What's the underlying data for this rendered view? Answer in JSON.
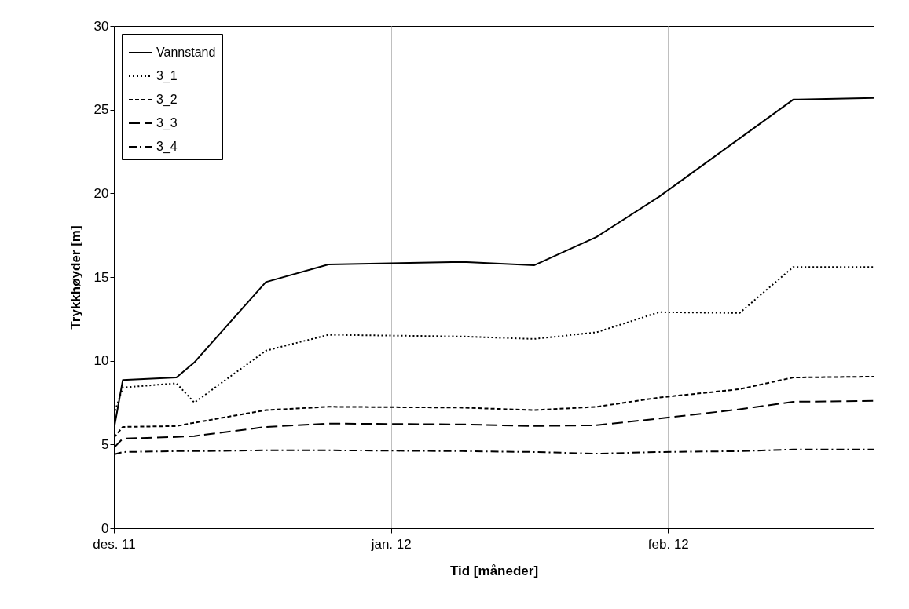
{
  "chart_data": {
    "type": "line",
    "xlabel": "Tid [måneder]",
    "ylabel": "Trykkhøyder [m]",
    "xlim": [
      "2011-12-01",
      "2012-02-24"
    ],
    "xticks": [
      {
        "value": "2011-12-01",
        "label": "des. 11"
      },
      {
        "value": "2012-01-01",
        "label": "jan. 12"
      },
      {
        "value": "2012-02-01",
        "label": "feb. 12"
      }
    ],
    "ylim": [
      0,
      30
    ],
    "yticks": [
      0,
      5,
      10,
      15,
      20,
      25,
      30
    ],
    "grid": "x",
    "legend": "top left",
    "series": [
      {
        "name": "Vannstand",
        "color": "#000000",
        "line_style": "solid",
        "x": [
          "2011-12-01",
          "2011-12-02",
          "2011-12-08",
          "2011-12-10",
          "2011-12-18",
          "2011-12-25",
          "2012-01-09",
          "2012-01-17",
          "2012-01-24",
          "2012-01-31",
          "2012-02-15",
          "2012-02-24"
        ],
        "values": [
          5.9,
          8.85,
          9.0,
          9.9,
          14.7,
          15.75,
          15.9,
          15.7,
          17.4,
          19.8,
          25.6,
          25.7
        ]
      },
      {
        "name": "3_1",
        "color": "#000000",
        "line_style": "dotted",
        "x": [
          "2011-12-01",
          "2011-12-02",
          "2011-12-08",
          "2011-12-10",
          "2011-12-18",
          "2011-12-25",
          "2012-01-09",
          "2012-01-17",
          "2012-01-24",
          "2012-01-31",
          "2012-02-09",
          "2012-02-15",
          "2012-02-24"
        ],
        "values": [
          6.8,
          8.4,
          8.65,
          7.5,
          10.6,
          11.55,
          11.45,
          11.3,
          11.7,
          12.9,
          12.85,
          15.6,
          15.6
        ]
      },
      {
        "name": "3_2",
        "color": "#000000",
        "line_style": "dashed",
        "x": [
          "2011-12-01",
          "2011-12-02",
          "2011-12-08",
          "2011-12-10",
          "2011-12-18",
          "2011-12-25",
          "2012-01-09",
          "2012-01-17",
          "2012-01-24",
          "2012-01-31",
          "2012-02-09",
          "2012-02-15",
          "2012-02-24"
        ],
        "values": [
          5.4,
          6.05,
          6.1,
          6.3,
          7.05,
          7.25,
          7.2,
          7.05,
          7.25,
          7.8,
          8.3,
          9.0,
          9.05
        ]
      },
      {
        "name": "3_3",
        "color": "#000000",
        "line_style": "longdash",
        "x": [
          "2011-12-01",
          "2011-12-02",
          "2011-12-08",
          "2011-12-10",
          "2011-12-18",
          "2011-12-25",
          "2012-01-09",
          "2012-01-17",
          "2012-01-24",
          "2012-01-31",
          "2012-02-09",
          "2012-02-15",
          "2012-02-24"
        ],
        "values": [
          4.8,
          5.35,
          5.45,
          5.5,
          6.05,
          6.25,
          6.2,
          6.1,
          6.15,
          6.55,
          7.1,
          7.55,
          7.6
        ]
      },
      {
        "name": "3_4",
        "color": "#000000",
        "line_style": "dashdot",
        "x": [
          "2011-12-01",
          "2011-12-02",
          "2011-12-08",
          "2011-12-10",
          "2011-12-18",
          "2011-12-25",
          "2012-01-09",
          "2012-01-17",
          "2012-01-24",
          "2012-01-31",
          "2012-02-09",
          "2012-02-15",
          "2012-02-24"
        ],
        "values": [
          4.4,
          4.55,
          4.6,
          4.6,
          4.65,
          4.65,
          4.6,
          4.55,
          4.45,
          4.55,
          4.6,
          4.7,
          4.7
        ]
      }
    ]
  }
}
